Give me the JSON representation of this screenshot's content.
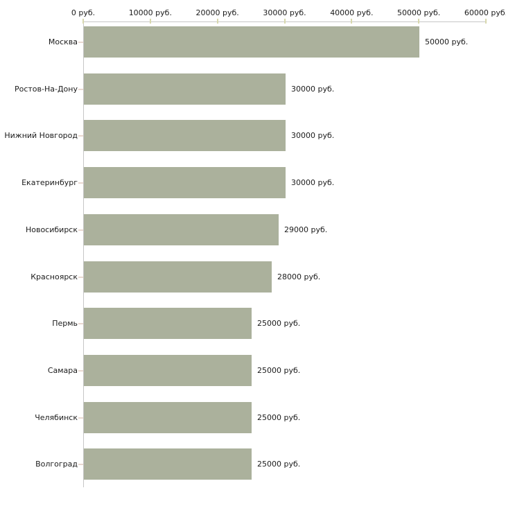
{
  "chart_data": {
    "type": "bar",
    "orientation": "horizontal",
    "title": "",
    "xlabel": "",
    "ylabel": "",
    "unit": "руб.",
    "categories": [
      "Москва",
      "Ростов-На-Дону",
      "Нижний Новгород",
      "Екатеринбург",
      "Новосибирск",
      "Красноярск",
      "Пермь",
      "Самара",
      "Челябинск",
      "Волгоград"
    ],
    "values": [
      50000,
      30000,
      30000,
      30000,
      29000,
      28000,
      25000,
      25000,
      25000,
      25000
    ],
    "value_labels": [
      "50000 руб.",
      "30000 руб.",
      "30000 руб.",
      "30000 руб.",
      "29000 руб.",
      "28000 руб.",
      "25000 руб.",
      "25000 руб.",
      "25000 руб.",
      "25000 руб."
    ],
    "x_ticks": [
      0,
      10000,
      20000,
      30000,
      40000,
      50000,
      60000
    ],
    "x_tick_labels": [
      "0 руб.",
      "10000 руб.",
      "20000 руб.",
      "30000 руб.",
      "40000 руб.",
      "50000 руб.",
      "60000 руб."
    ],
    "xlim": [
      0,
      60000
    ],
    "grid": false,
    "legend": false,
    "axis_position": "top",
    "colors": {
      "bar": "#abb19c",
      "axis_line": "#c6c6c6",
      "x_tick": "#d8d8ae",
      "category_tick": "#e9d8d0",
      "text": "#1a1a1a",
      "background": "#ffffff"
    }
  }
}
